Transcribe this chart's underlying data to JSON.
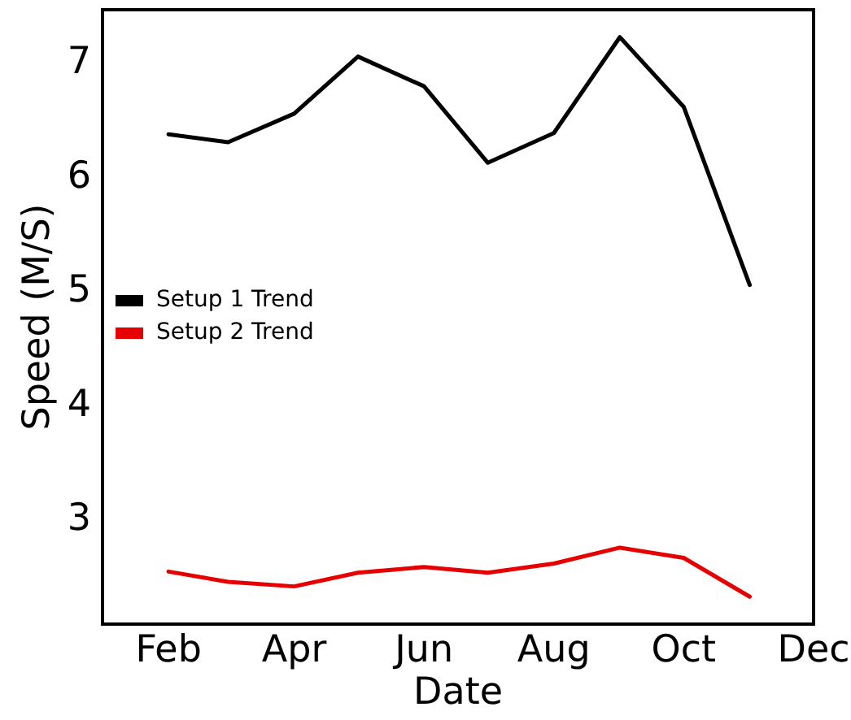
{
  "chart_data": {
    "type": "line",
    "xlabel": "Date",
    "ylabel": "Speed (M/S)",
    "x": [
      "--02-01",
      "--03-01",
      "--04-01",
      "--05-01",
      "--06-01",
      "--07-01",
      "--08-01",
      "--09-01",
      "--10-01",
      "--11-01"
    ],
    "series": [
      {
        "name": "Setup 1 Trend",
        "color": "#000000",
        "values": [
          6.38,
          6.31,
          6.56,
          7.06,
          6.8,
          6.13,
          6.39,
          7.23,
          6.62,
          5.06
        ]
      },
      {
        "name": "Setup 2 Trend",
        "color": "#e60000",
        "values": [
          2.55,
          2.46,
          2.42,
          2.54,
          2.59,
          2.54,
          2.62,
          2.76,
          2.67,
          2.33
        ]
      }
    ],
    "xlim": [
      "--01-01",
      "--12-01"
    ],
    "xticks": [
      {
        "value": "--02-01",
        "label": "Feb"
      },
      {
        "value": "--04-01",
        "label": "Apr"
      },
      {
        "value": "--06-01",
        "label": "Jun"
      },
      {
        "value": "--08-01",
        "label": "Aug"
      },
      {
        "value": "--10-01",
        "label": "Oct"
      },
      {
        "value": "--12-01",
        "label": "Dec"
      }
    ],
    "ylim": [
      2.09,
      7.47
    ],
    "yticks": [
      3,
      4,
      5,
      6,
      7
    ],
    "grid": false,
    "legend": "center left",
    "marker": "none",
    "line_style": "solid"
  }
}
